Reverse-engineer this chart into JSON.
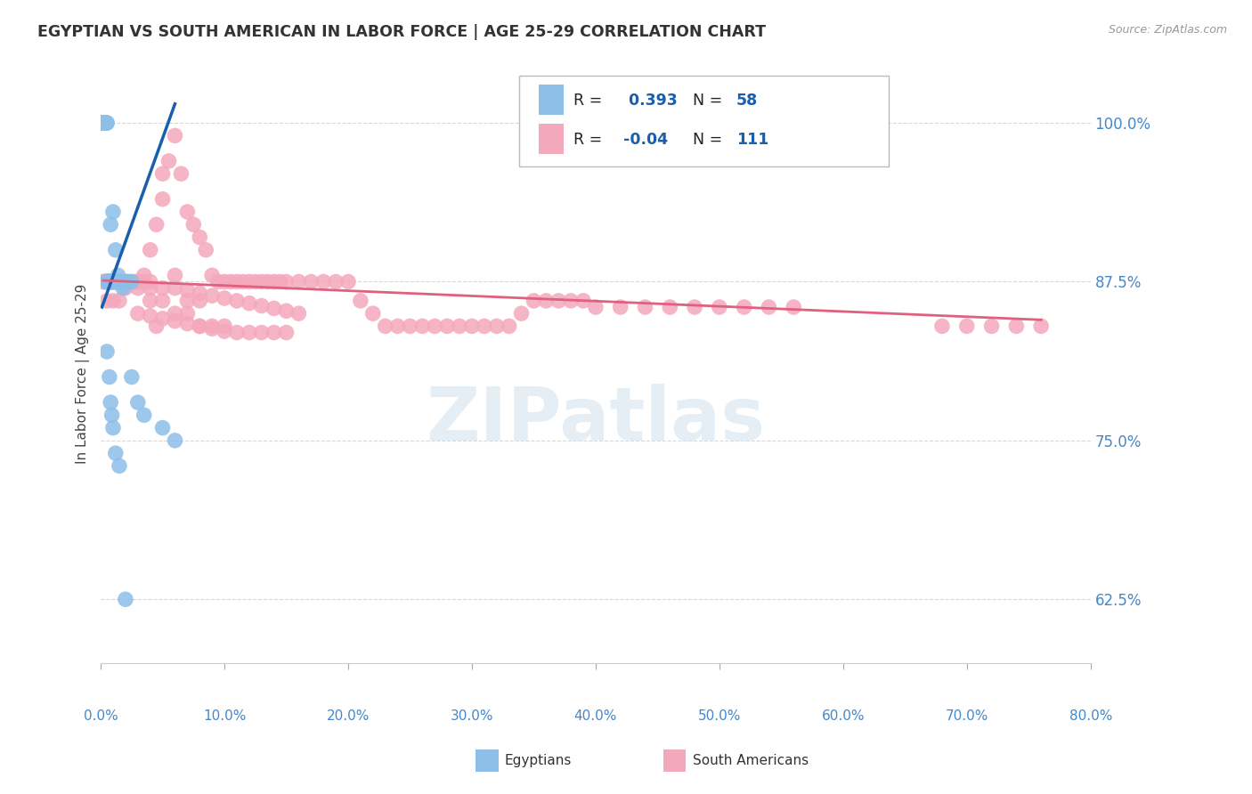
{
  "title": "EGYPTIAN VS SOUTH AMERICAN IN LABOR FORCE | AGE 25-29 CORRELATION CHART",
  "source": "Source: ZipAtlas.com",
  "ylabel_label": "In Labor Force | Age 25-29",
  "xmin": 0.0,
  "xmax": 0.8,
  "ymin": 0.575,
  "ymax": 1.03,
  "r_egyptian": 0.393,
  "n_egyptian": 58,
  "r_south_american": -0.04,
  "n_south_american": 111,
  "watermark": "ZIPatlas",
  "egyptian_color": "#8DBFE8",
  "south_american_color": "#F4A8BC",
  "trendline_egyptian_color": "#1A5FAB",
  "trendline_sa_color": "#E06080",
  "legend_r_color": "#1A5FAB",
  "title_color": "#333333",
  "axis_tick_color": "#4488CC",
  "grid_color": "#d8d8d8",
  "eg_x": [
    0.001,
    0.001,
    0.002,
    0.002,
    0.002,
    0.003,
    0.003,
    0.003,
    0.003,
    0.004,
    0.004,
    0.004,
    0.004,
    0.004,
    0.005,
    0.005,
    0.005,
    0.005,
    0.006,
    0.006,
    0.006,
    0.007,
    0.007,
    0.008,
    0.008,
    0.009,
    0.009,
    0.01,
    0.01,
    0.011,
    0.011,
    0.012,
    0.013,
    0.014,
    0.015,
    0.016,
    0.018,
    0.02,
    0.022,
    0.025,
    0.008,
    0.01,
    0.012,
    0.014,
    0.018,
    0.025,
    0.03,
    0.035,
    0.05,
    0.06,
    0.005,
    0.007,
    0.008,
    0.009,
    0.01,
    0.012,
    0.015,
    0.02
  ],
  "eg_y": [
    1.0,
    1.0,
    1.0,
    1.0,
    1.0,
    1.0,
    1.0,
    1.0,
    1.0,
    1.0,
    1.0,
    1.0,
    1.0,
    1.0,
    1.0,
    1.0,
    0.875,
    0.875,
    0.875,
    0.875,
    0.875,
    0.875,
    0.875,
    0.875,
    0.875,
    0.875,
    0.875,
    0.875,
    0.875,
    0.875,
    0.875,
    0.875,
    0.875,
    0.875,
    0.875,
    0.875,
    0.875,
    0.875,
    0.875,
    0.875,
    0.92,
    0.93,
    0.9,
    0.88,
    0.87,
    0.8,
    0.78,
    0.77,
    0.76,
    0.75,
    0.82,
    0.8,
    0.78,
    0.77,
    0.76,
    0.74,
    0.73,
    0.625
  ],
  "sa_x": [
    0.002,
    0.003,
    0.003,
    0.004,
    0.004,
    0.005,
    0.005,
    0.006,
    0.006,
    0.007,
    0.007,
    0.008,
    0.008,
    0.009,
    0.01,
    0.01,
    0.011,
    0.012,
    0.013,
    0.014,
    0.015,
    0.016,
    0.018,
    0.02,
    0.022,
    0.025,
    0.028,
    0.03,
    0.035,
    0.04,
    0.04,
    0.045,
    0.05,
    0.05,
    0.055,
    0.06,
    0.065,
    0.07,
    0.075,
    0.08,
    0.085,
    0.09,
    0.095,
    0.1,
    0.105,
    0.11,
    0.115,
    0.12,
    0.125,
    0.13,
    0.135,
    0.14,
    0.145,
    0.15,
    0.16,
    0.17,
    0.18,
    0.19,
    0.2,
    0.21,
    0.22,
    0.23,
    0.24,
    0.25,
    0.26,
    0.27,
    0.28,
    0.29,
    0.3,
    0.31,
    0.32,
    0.33,
    0.34,
    0.35,
    0.36,
    0.37,
    0.38,
    0.39,
    0.4,
    0.42,
    0.44,
    0.46,
    0.48,
    0.5,
    0.52,
    0.54,
    0.56,
    0.03,
    0.04,
    0.05,
    0.06,
    0.07,
    0.08,
    0.09,
    0.1,
    0.11,
    0.12,
    0.13,
    0.14,
    0.15,
    0.06,
    0.07,
    0.08,
    0.09,
    0.1,
    0.11,
    0.12,
    0.13,
    0.14,
    0.15,
    0.16
  ],
  "sa_y": [
    0.875,
    0.875,
    0.875,
    0.875,
    0.875,
    0.875,
    0.875,
    0.875,
    0.875,
    0.875,
    0.875,
    0.875,
    0.875,
    0.875,
    0.875,
    0.875,
    0.875,
    0.875,
    0.875,
    0.875,
    0.875,
    0.875,
    0.875,
    0.875,
    0.875,
    0.875,
    0.875,
    0.875,
    0.875,
    0.875,
    0.9,
    0.92,
    0.94,
    0.96,
    0.97,
    0.99,
    0.96,
    0.93,
    0.92,
    0.91,
    0.9,
    0.88,
    0.875,
    0.875,
    0.875,
    0.875,
    0.875,
    0.875,
    0.875,
    0.875,
    0.875,
    0.875,
    0.875,
    0.875,
    0.875,
    0.875,
    0.875,
    0.875,
    0.875,
    0.86,
    0.85,
    0.84,
    0.84,
    0.84,
    0.84,
    0.84,
    0.84,
    0.84,
    0.84,
    0.84,
    0.84,
    0.84,
    0.85,
    0.86,
    0.86,
    0.86,
    0.86,
    0.86,
    0.855,
    0.855,
    0.855,
    0.855,
    0.855,
    0.855,
    0.855,
    0.855,
    0.855,
    0.85,
    0.848,
    0.846,
    0.844,
    0.842,
    0.84,
    0.838,
    0.836,
    0.835,
    0.835,
    0.835,
    0.835,
    0.835,
    0.87,
    0.868,
    0.866,
    0.864,
    0.862,
    0.86,
    0.858,
    0.856,
    0.854,
    0.852,
    0.85
  ],
  "sa_x_extra": [
    0.005,
    0.01,
    0.015,
    0.02,
    0.03,
    0.04,
    0.05,
    0.06,
    0.035,
    0.07,
    0.08,
    0.04,
    0.05,
    0.06,
    0.07,
    0.08,
    0.045,
    0.09,
    0.1,
    0.68,
    0.7,
    0.72,
    0.74,
    0.76
  ],
  "sa_y_extra": [
    0.86,
    0.86,
    0.86,
    0.87,
    0.87,
    0.87,
    0.87,
    0.88,
    0.88,
    0.86,
    0.86,
    0.86,
    0.86,
    0.85,
    0.85,
    0.84,
    0.84,
    0.84,
    0.84,
    0.84,
    0.84,
    0.84,
    0.84,
    0.84
  ],
  "eg_trendline_x": [
    0.001,
    0.06
  ],
  "eg_trendline_y": [
    0.855,
    1.015
  ],
  "sa_trendline_x": [
    0.002,
    0.76
  ],
  "sa_trendline_y": [
    0.876,
    0.845
  ]
}
